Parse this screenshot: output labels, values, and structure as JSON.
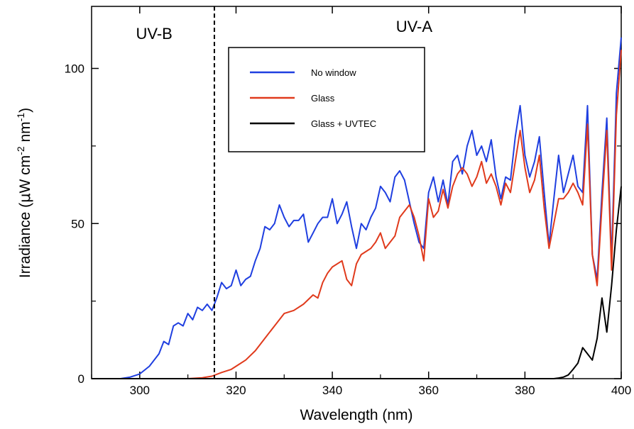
{
  "chart_data": {
    "type": "line",
    "xlabel": "Wavelength (nm)",
    "ylabel": {
      "base": "Irradiance (",
      "mu": "μ",
      "unit1": "W cm",
      "exp1": "-2",
      "unit2": " nm",
      "exp2": "-1",
      "close": ")"
    },
    "xlim": [
      290,
      400
    ],
    "ylim": [
      0,
      120
    ],
    "xticks": [
      300,
      320,
      340,
      360,
      380,
      400
    ],
    "xtick_labels": [
      "300",
      "320",
      "340",
      "360",
      "380",
      "400"
    ],
    "yticks": [
      0,
      50,
      100
    ],
    "ytick_labels": [
      "0",
      "50",
      "100"
    ],
    "grid": false,
    "legend_position": "top-center",
    "annotations": [
      {
        "text": "UV-B",
        "x": 303
      },
      {
        "text": "UV-A",
        "x": 357
      }
    ],
    "divider_x": 315.5,
    "series": [
      {
        "name": "No window",
        "color": "#1f3fe0",
        "x": [
          290,
          296,
          298,
          300,
          302,
          304,
          305,
          306,
          307,
          308,
          309,
          310,
          311,
          312,
          313,
          314,
          315,
          316,
          317,
          318,
          319,
          320,
          321,
          322,
          323,
          324,
          325,
          326,
          327,
          328,
          329,
          330,
          331,
          332,
          333,
          334,
          335,
          336,
          337,
          338,
          339,
          340,
          341,
          342,
          343,
          344,
          345,
          346,
          347,
          348,
          349,
          350,
          351,
          352,
          353,
          354,
          355,
          356,
          357,
          358,
          359,
          360,
          361,
          362,
          363,
          364,
          365,
          366,
          367,
          368,
          369,
          370,
          371,
          372,
          373,
          374,
          375,
          376,
          377,
          378,
          379,
          380,
          381,
          382,
          383,
          384,
          385,
          386,
          387,
          388,
          389,
          390,
          391,
          392,
          393,
          394,
          395,
          396,
          397,
          398,
          399,
          400
        ],
        "y": [
          0,
          0,
          0.5,
          1.5,
          4,
          8,
          12,
          11,
          17,
          18,
          17,
          21,
          19,
          23,
          22,
          24,
          22,
          26,
          31,
          29,
          30,
          35,
          30,
          32,
          33,
          38,
          42,
          49,
          48,
          50,
          56,
          52,
          49,
          51,
          51,
          53,
          44,
          47,
          50,
          52,
          52,
          58,
          50,
          53,
          57,
          49,
          42,
          50,
          48,
          52,
          55,
          62,
          60,
          57,
          65,
          67,
          64,
          57,
          50,
          44,
          42,
          60,
          65,
          57,
          64,
          56,
          70,
          72,
          66,
          75,
          80,
          72,
          75,
          70,
          77,
          65,
          58,
          65,
          64,
          78,
          88,
          72,
          65,
          70,
          78,
          60,
          43,
          58,
          72,
          60,
          66,
          72,
          62,
          60,
          88,
          40,
          32,
          60,
          84,
          38,
          92,
          110
        ]
      },
      {
        "name": "Glass",
        "color": "#e03a1c",
        "x": [
          290,
          310,
          313,
          315,
          317,
          319,
          320,
          322,
          324,
          326,
          328,
          330,
          332,
          334,
          336,
          337,
          338,
          339,
          340,
          342,
          343,
          344,
          345,
          346,
          347,
          348,
          349,
          350,
          351,
          352,
          353,
          354,
          355,
          356,
          357,
          358,
          359,
          360,
          361,
          362,
          363,
          364,
          365,
          366,
          367,
          368,
          369,
          370,
          371,
          372,
          373,
          374,
          375,
          376,
          377,
          378,
          379,
          380,
          381,
          382,
          383,
          384,
          385,
          386,
          387,
          388,
          389,
          390,
          391,
          392,
          393,
          394,
          395,
          396,
          397,
          398,
          399,
          400
        ],
        "y": [
          0,
          0,
          0.3,
          0.8,
          2,
          3,
          4,
          6,
          9,
          13,
          17,
          21,
          22,
          24,
          27,
          26,
          31,
          34,
          36,
          38,
          32,
          30,
          37,
          40,
          41,
          42,
          44,
          47,
          42,
          44,
          46,
          52,
          54,
          56,
          52,
          46,
          38,
          58,
          52,
          54,
          61,
          55,
          62,
          66,
          68,
          66,
          62,
          65,
          70,
          63,
          66,
          62,
          56,
          63,
          60,
          70,
          80,
          68,
          60,
          64,
          72,
          55,
          42,
          50,
          58,
          58,
          60,
          63,
          60,
          56,
          82,
          40,
          30,
          56,
          80,
          35,
          85,
          106
        ]
      },
      {
        "name": "Glass + UVTEC",
        "color": "#000000",
        "x": [
          290,
          385,
          386,
          387,
          388,
          389,
          390,
          391,
          392,
          393,
          394,
          395,
          396,
          397,
          398,
          399,
          400
        ],
        "y": [
          0,
          0,
          0,
          0.2,
          0.5,
          1.2,
          3,
          5,
          10,
          8,
          6,
          13,
          26,
          15,
          30,
          48,
          62
        ]
      }
    ]
  }
}
